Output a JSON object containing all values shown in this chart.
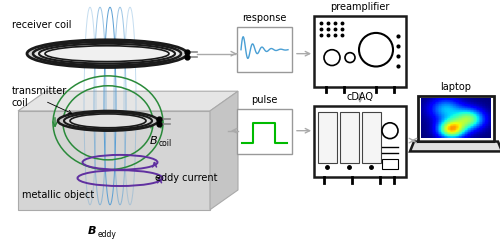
{
  "bg_color": "#ffffff",
  "coil_color": "#1a1a1a",
  "field_color": "#5a9fd4",
  "green_color": "#2a8a3a",
  "purple_color": "#6030a0",
  "arrow_color": "#aaaaaa",
  "signal_color": "#4a9fd4",
  "pulse_color": "#00bb00",
  "box_face": "#d5d5d5",
  "box_top": "#e5e5e5",
  "box_right": "#c5c5c5",
  "figsize": [
    5.0,
    2.4
  ],
  "dpi": 100,
  "labels": {
    "receiver_coil": "receiver coil",
    "transmitter_coil": "transmitter\ncoil",
    "Bcoil": "B",
    "Bcoil_sub": "coil",
    "metallic_object": "metallic object",
    "eddy_current": "eddy current",
    "Beddy": "B",
    "Beddy_sub": "eddy",
    "response": "response",
    "preamplifier": "preamplifier",
    "pulse": "pulse",
    "cDAQ": "cDAQ",
    "laptop": "laptop"
  }
}
